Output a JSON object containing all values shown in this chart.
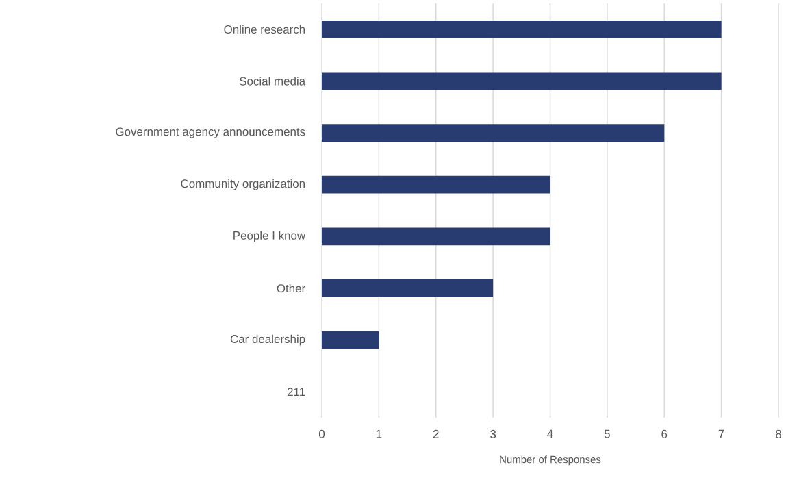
{
  "chart_data": {
    "type": "bar",
    "orientation": "horizontal",
    "categories": [
      "Online research",
      "Social media",
      "Government agency announcements",
      "Community organization",
      "People I know",
      "Other",
      "Car dealership",
      "211"
    ],
    "values": [
      7,
      7,
      6,
      4,
      4,
      3,
      1,
      0
    ],
    "color": "#283c71",
    "xlim": [
      0,
      8
    ],
    "xticks": [
      0,
      1,
      2,
      3,
      4,
      5,
      6,
      7,
      8
    ],
    "xlabel": "Number of Responses",
    "grid": "x"
  }
}
